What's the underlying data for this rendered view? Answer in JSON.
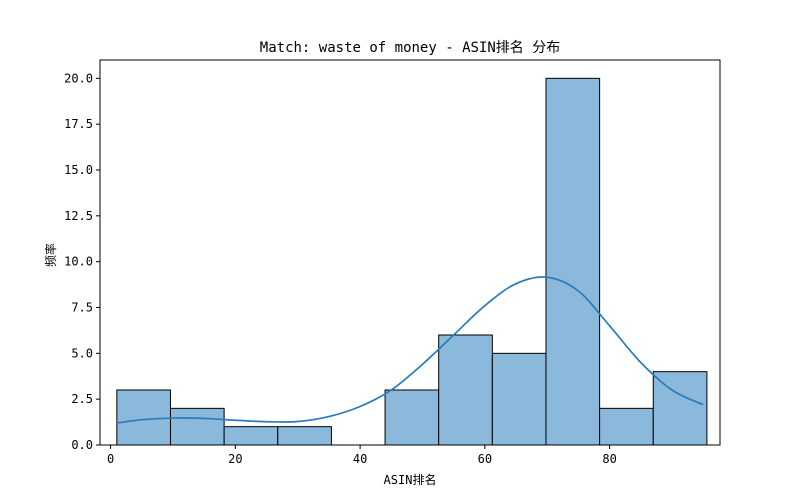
{
  "chart_data": {
    "type": "bar",
    "title": "Match: waste of money - ASIN排名 分布",
    "xlabel": "ASIN排名",
    "ylabel": "频率",
    "xlim": [
      -1.7,
      97.7
    ],
    "ylim": [
      0,
      21
    ],
    "xticks": [
      0,
      20,
      40,
      60,
      80
    ],
    "yticks": [
      0.0,
      2.5,
      5.0,
      7.5,
      10.0,
      12.5,
      15.0,
      17.5,
      20.0
    ],
    "ytick_labels": [
      "0.0",
      "2.5",
      "5.0",
      "7.5",
      "10.0",
      "12.5",
      "15.0",
      "17.5",
      "20.0"
    ],
    "bins": [
      {
        "x0": 1.0,
        "x1": 9.6,
        "count": 3
      },
      {
        "x0": 9.6,
        "x1": 18.2,
        "count": 2
      },
      {
        "x0": 18.2,
        "x1": 26.8,
        "count": 1
      },
      {
        "x0": 26.8,
        "x1": 35.4,
        "count": 1
      },
      {
        "x0": 35.4,
        "x1": 44.0,
        "count": 0
      },
      {
        "x0": 44.0,
        "x1": 52.6,
        "count": 3
      },
      {
        "x0": 52.6,
        "x1": 61.2,
        "count": 6
      },
      {
        "x0": 61.2,
        "x1": 69.8,
        "count": 5
      },
      {
        "x0": 69.8,
        "x1": 78.4,
        "count": 20
      },
      {
        "x0": 78.4,
        "x1": 87.0,
        "count": 2
      },
      {
        "x0": 87.0,
        "x1": 95.6,
        "count": 4
      }
    ],
    "kde": {
      "x": [
        1,
        5,
        10,
        15,
        20,
        25,
        30,
        35,
        40,
        45,
        50,
        55,
        60,
        65,
        70,
        75,
        80,
        85,
        90,
        95
      ],
      "y": [
        1.2,
        1.38,
        1.47,
        1.45,
        1.35,
        1.27,
        1.28,
        1.55,
        2.1,
        3.0,
        4.4,
        6.0,
        7.6,
        8.8,
        9.15,
        8.4,
        6.5,
        4.5,
        3.0,
        2.2
      ]
    },
    "colors": {
      "bar_fill": "#8ab9db",
      "bar_edge": "#000000",
      "kde_line": "#2a7bbb"
    },
    "grid": false,
    "legend": "none"
  }
}
